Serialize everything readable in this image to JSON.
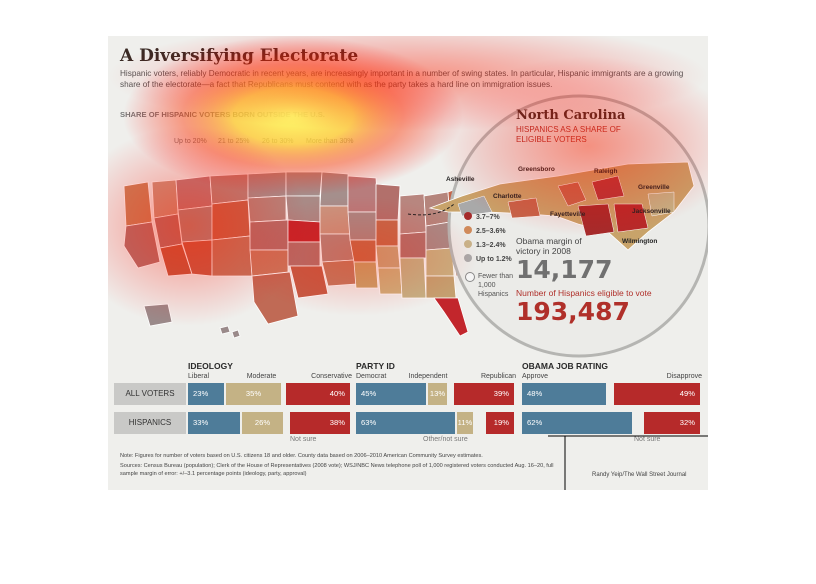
{
  "header": {
    "title": "A Diversifying Electorate",
    "intro": "Hispanic voters, reliably Democratic in recent years, are increasingly important in a number of swing states. In particular, Hispanic immigrants are a growing share of the electorate—a fact that Republicans must contend with as the party takes a hard line on immigration issues."
  },
  "us_map": {
    "legend_title": "SHARE OF HISPANIC VOTERS BORN OUTSIDE THE U.S.",
    "legend": [
      "Up to 20%",
      "21 to 25%",
      "26 to 30%",
      "More than 30%"
    ]
  },
  "nc": {
    "title": "North Carolina",
    "subtitle": "HISPANICS AS A SHARE OF ELIGIBLE VOTERS",
    "cities": [
      "Asheville",
      "Greensboro",
      "Raleigh",
      "Greenville",
      "Charlotte",
      "Fayetteville",
      "Jacksonville",
      "Wilmington"
    ],
    "legend": [
      "3.7–7%",
      "2.5–3.6%",
      "1.3–2.4%",
      "Up to 1.2%"
    ],
    "fewer": "Fewer than 1,000 Hispanics",
    "obama_margin_label": "Obama margin of victory in 2008",
    "obama_margin": "14,177",
    "hispanics_label": "Number of Hispanics eligible to vote",
    "hispanics": "193,487"
  },
  "chart_data": {
    "type": "bar",
    "categories": [
      "ALL VOTERS",
      "HISPANICS"
    ],
    "groups": [
      {
        "title": "IDEOLOGY",
        "segments": [
          "Liberal",
          "Moderate",
          "Conservative"
        ],
        "values": {
          "ALL VOTERS": [
            23,
            35,
            40
          ],
          "HISPANICS": [
            33,
            26,
            38
          ]
        },
        "gap_label": "Not sure"
      },
      {
        "title": "PARTY ID",
        "segments": [
          "Democrat",
          "Independent",
          "Republican"
        ],
        "values": {
          "ALL VOTERS": [
            45,
            13,
            39
          ],
          "HISPANICS": [
            63,
            11,
            19
          ]
        },
        "gap_label": "Other/not sure"
      },
      {
        "title": "OBAMA JOB RATING",
        "segments": [
          "Approve",
          "Disapprove"
        ],
        "values": {
          "ALL VOTERS": [
            48,
            49
          ],
          "HISPANICS": [
            62,
            32
          ]
        },
        "gap_label": "Not sure"
      }
    ],
    "colors": [
      "#4e7c99",
      "#c4b285",
      "#b62a2a"
    ]
  },
  "notes": {
    "note": "Note: Figures for number of voters based on U.S. citizens 18 and older. County data based on 2006–2010 American Community Survey estimates.",
    "sources": "Sources: Census Bureau (population); Clerk of the House of Representatives (2008 vote); WSJ/NBC News telephone poll of 1,000 registered voters conducted Aug. 16–20, full sample margin of error: +/–3.1 percentage points (ideology, party, approval)",
    "credit": "Randy Yeip/The Wall Street Journal"
  }
}
